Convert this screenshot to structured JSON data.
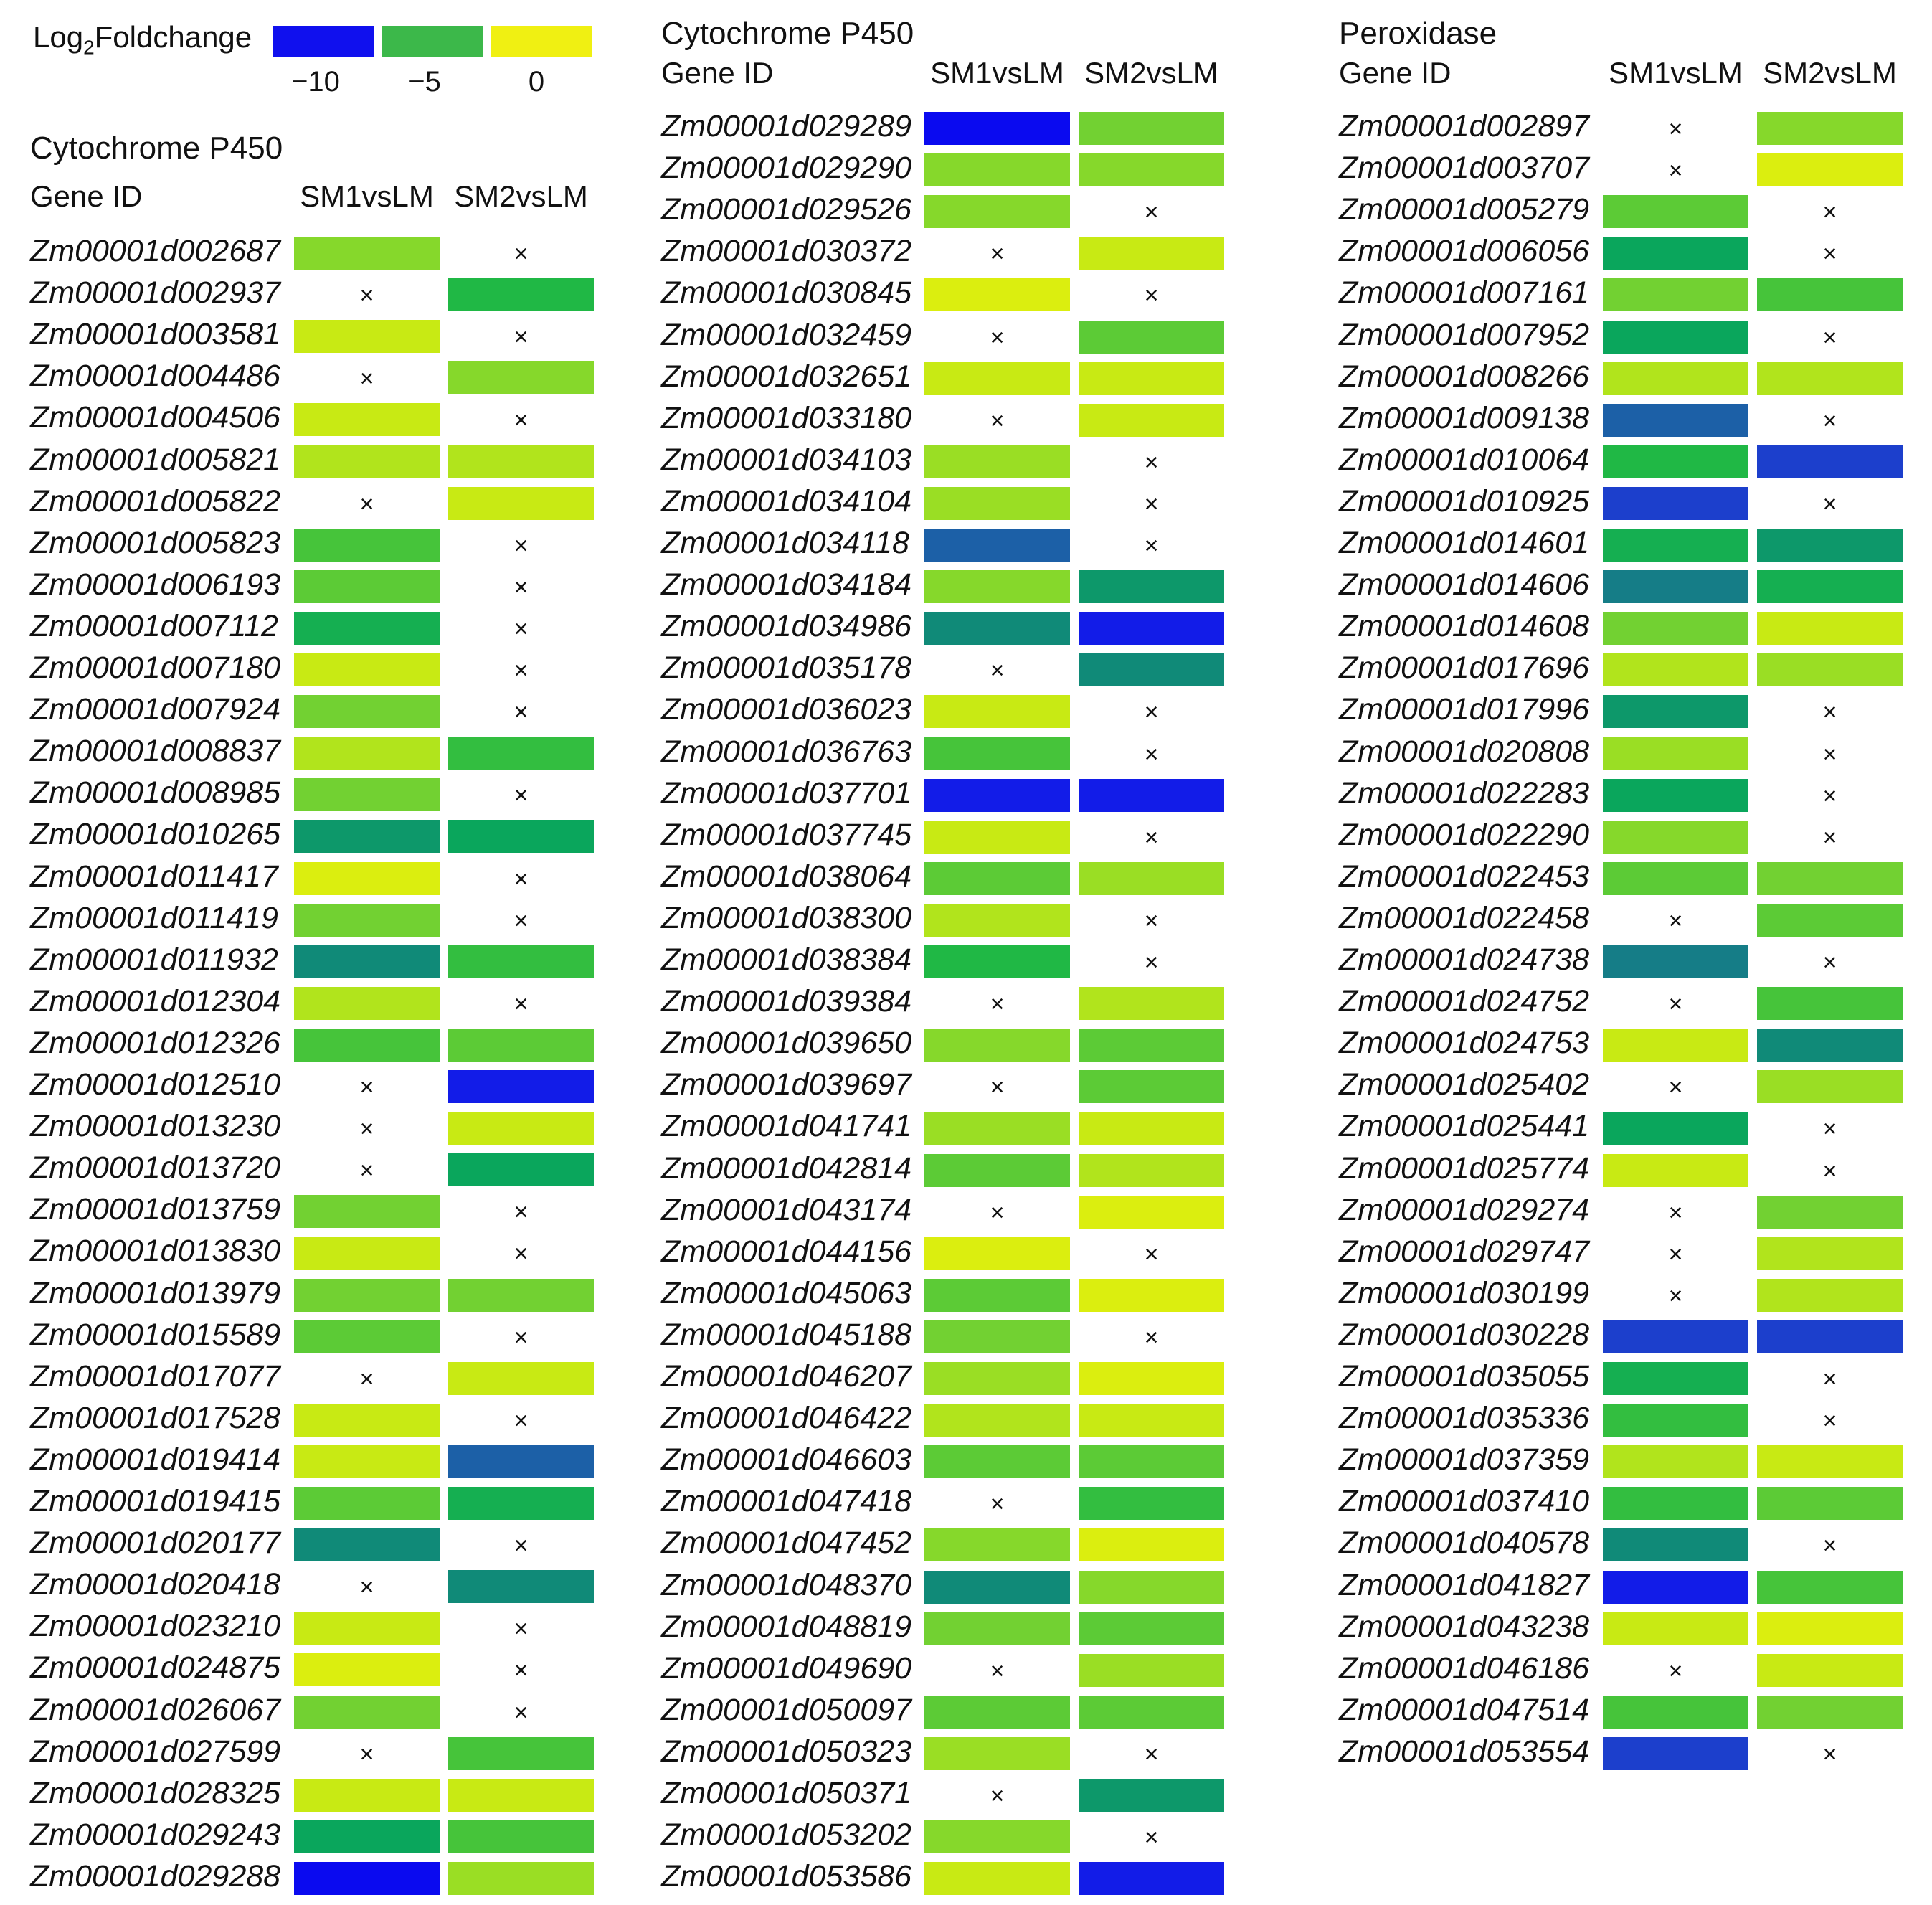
{
  "chart_data": {
    "type": "heatmap",
    "legend": {
      "title_prefix": "Log",
      "title_sub": "2",
      "title_suffix": "Foldchange",
      "ticks": [
        "−10",
        "−5",
        "0"
      ],
      "swatches": [
        "#1010ee",
        "#3cb84a",
        "#f0f012"
      ]
    },
    "missing_symbol": "×",
    "colorscale": {
      "domain": [
        -10,
        0
      ],
      "stops": [
        [
          -11,
          "#0a0af0"
        ],
        [
          -10,
          "#1a2ee0"
        ],
        [
          -9,
          "#1d50b8"
        ],
        [
          -8,
          "#1a6f96"
        ],
        [
          -7,
          "#108a78"
        ],
        [
          -6,
          "#0aa65c"
        ],
        [
          -5,
          "#20b845"
        ],
        [
          -4,
          "#46c43a"
        ],
        [
          -3,
          "#72d132"
        ],
        [
          -2,
          "#9ade24"
        ],
        [
          -1,
          "#c8ea14"
        ],
        [
          0,
          "#eef20a"
        ]
      ]
    },
    "panels": [
      {
        "title": "Cytochrome P450",
        "gene_header": "Gene ID",
        "columns": [
          "SM1vsLM",
          "SM2vsLM"
        ],
        "rows": [
          {
            "gene": "Zm00001d002687",
            "values": [
              -2.5,
              null
            ]
          },
          {
            "gene": "Zm00001d002937",
            "values": [
              null,
              -5
            ]
          },
          {
            "gene": "Zm00001d003581",
            "values": [
              -1,
              null
            ]
          },
          {
            "gene": "Zm00001d004486",
            "values": [
              null,
              -2.5
            ]
          },
          {
            "gene": "Zm00001d004506",
            "values": [
              -1,
              null
            ]
          },
          {
            "gene": "Zm00001d005821",
            "values": [
              -1.5,
              -1.5
            ]
          },
          {
            "gene": "Zm00001d005822",
            "values": [
              null,
              -1
            ]
          },
          {
            "gene": "Zm00001d005823",
            "values": [
              -4,
              null
            ]
          },
          {
            "gene": "Zm00001d006193",
            "values": [
              -3.5,
              null
            ]
          },
          {
            "gene": "Zm00001d007112",
            "values": [
              -5.5,
              null
            ]
          },
          {
            "gene": "Zm00001d007180",
            "values": [
              -1,
              null
            ]
          },
          {
            "gene": "Zm00001d007924",
            "values": [
              -3,
              null
            ]
          },
          {
            "gene": "Zm00001d008837",
            "values": [
              -1.5,
              -4.5
            ]
          },
          {
            "gene": "Zm00001d008985",
            "values": [
              -3,
              null
            ]
          },
          {
            "gene": "Zm00001d010265",
            "values": [
              -6.5,
              -6
            ]
          },
          {
            "gene": "Zm00001d011417",
            "values": [
              -0.5,
              null
            ]
          },
          {
            "gene": "Zm00001d011419",
            "values": [
              -3,
              null
            ]
          },
          {
            "gene": "Zm00001d011932",
            "values": [
              -7,
              -4.5
            ]
          },
          {
            "gene": "Zm00001d012304",
            "values": [
              -1.5,
              null
            ]
          },
          {
            "gene": "Zm00001d012326",
            "values": [
              -4,
              -3.5
            ]
          },
          {
            "gene": "Zm00001d012510",
            "values": [
              null,
              -10.5
            ]
          },
          {
            "gene": "Zm00001d013230",
            "values": [
              null,
              -1
            ]
          },
          {
            "gene": "Zm00001d013720",
            "values": [
              null,
              -6
            ]
          },
          {
            "gene": "Zm00001d013759",
            "values": [
              -3,
              null
            ]
          },
          {
            "gene": "Zm00001d013830",
            "values": [
              -1,
              null
            ]
          },
          {
            "gene": "Zm00001d013979",
            "values": [
              -3,
              -3
            ]
          },
          {
            "gene": "Zm00001d015589",
            "values": [
              -3.5,
              null
            ]
          },
          {
            "gene": "Zm00001d017077",
            "values": [
              null,
              -1
            ]
          },
          {
            "gene": "Zm00001d017528",
            "values": [
              -1,
              null
            ]
          },
          {
            "gene": "Zm00001d019414",
            "values": [
              -1,
              -8.5
            ]
          },
          {
            "gene": "Zm00001d019415",
            "values": [
              -3.5,
              -5.5
            ]
          },
          {
            "gene": "Zm00001d020177",
            "values": [
              -7,
              null
            ]
          },
          {
            "gene": "Zm00001d020418",
            "values": [
              null,
              -7
            ]
          },
          {
            "gene": "Zm00001d023210",
            "values": [
              -1,
              null
            ]
          },
          {
            "gene": "Zm00001d024875",
            "values": [
              -0.5,
              null
            ]
          },
          {
            "gene": "Zm00001d026067",
            "values": [
              -3,
              null
            ]
          },
          {
            "gene": "Zm00001d027599",
            "values": [
              null,
              -4
            ]
          },
          {
            "gene": "Zm00001d028325",
            "values": [
              -1,
              -1
            ]
          },
          {
            "gene": "Zm00001d029243",
            "values": [
              -6,
              -4
            ]
          },
          {
            "gene": "Zm00001d029288",
            "values": [
              -11,
              -2
            ]
          }
        ]
      },
      {
        "title": "Cytochrome P450",
        "gene_header": "Gene ID",
        "columns": [
          "SM1vsLM",
          "SM2vsLM"
        ],
        "rows": [
          {
            "gene": "Zm00001d029289",
            "values": [
              -11,
              -3
            ]
          },
          {
            "gene": "Zm00001d029290",
            "values": [
              -2.5,
              -2.5
            ]
          },
          {
            "gene": "Zm00001d029526",
            "values": [
              -2.5,
              null
            ]
          },
          {
            "gene": "Zm00001d030372",
            "values": [
              null,
              -1
            ]
          },
          {
            "gene": "Zm00001d030845",
            "values": [
              -0.5,
              null
            ]
          },
          {
            "gene": "Zm00001d032459",
            "values": [
              null,
              -3.5
            ]
          },
          {
            "gene": "Zm00001d032651",
            "values": [
              -1,
              -1
            ]
          },
          {
            "gene": "Zm00001d033180",
            "values": [
              null,
              -1
            ]
          },
          {
            "gene": "Zm00001d034103",
            "values": [
              -2,
              null
            ]
          },
          {
            "gene": "Zm00001d034104",
            "values": [
              -2,
              null
            ]
          },
          {
            "gene": "Zm00001d034118",
            "values": [
              -8.5,
              null
            ]
          },
          {
            "gene": "Zm00001d034184",
            "values": [
              -2.5,
              -6.5
            ]
          },
          {
            "gene": "Zm00001d034986",
            "values": [
              -7,
              -10.5
            ]
          },
          {
            "gene": "Zm00001d035178",
            "values": [
              null,
              -7
            ]
          },
          {
            "gene": "Zm00001d036023",
            "values": [
              -1,
              null
            ]
          },
          {
            "gene": "Zm00001d036763",
            "values": [
              -4,
              null
            ]
          },
          {
            "gene": "Zm00001d037701",
            "values": [
              -10.5,
              -10.5
            ]
          },
          {
            "gene": "Zm00001d037745",
            "values": [
              -1,
              null
            ]
          },
          {
            "gene": "Zm00001d038064",
            "values": [
              -3.5,
              -2
            ]
          },
          {
            "gene": "Zm00001d038300",
            "values": [
              -1.5,
              null
            ]
          },
          {
            "gene": "Zm00001d038384",
            "values": [
              -5,
              null
            ]
          },
          {
            "gene": "Zm00001d039384",
            "values": [
              null,
              -1.5
            ]
          },
          {
            "gene": "Zm00001d039650",
            "values": [
              -2.5,
              -3.5
            ]
          },
          {
            "gene": "Zm00001d039697",
            "values": [
              null,
              -3.5
            ]
          },
          {
            "gene": "Zm00001d041741",
            "values": [
              -2,
              -1
            ]
          },
          {
            "gene": "Zm00001d042814",
            "values": [
              -3.5,
              -1.5
            ]
          },
          {
            "gene": "Zm00001d043174",
            "values": [
              null,
              -0.5
            ]
          },
          {
            "gene": "Zm00001d044156",
            "values": [
              -0.5,
              null
            ]
          },
          {
            "gene": "Zm00001d045063",
            "values": [
              -3.5,
              -0.5
            ]
          },
          {
            "gene": "Zm00001d045188",
            "values": [
              -3,
              null
            ]
          },
          {
            "gene": "Zm00001d046207",
            "values": [
              -2,
              -0.5
            ]
          },
          {
            "gene": "Zm00001d046422",
            "values": [
              -1.5,
              -1
            ]
          },
          {
            "gene": "Zm00001d046603",
            "values": [
              -3.5,
              -3.5
            ]
          },
          {
            "gene": "Zm00001d047418",
            "values": [
              null,
              -4.5
            ]
          },
          {
            "gene": "Zm00001d047452",
            "values": [
              -2.5,
              -0.5
            ]
          },
          {
            "gene": "Zm00001d048370",
            "values": [
              -7,
              -2.5
            ]
          },
          {
            "gene": "Zm00001d048819",
            "values": [
              -3,
              -3.5
            ]
          },
          {
            "gene": "Zm00001d049690",
            "values": [
              null,
              -2
            ]
          },
          {
            "gene": "Zm00001d050097",
            "values": [
              -3.5,
              -3.5
            ]
          },
          {
            "gene": "Zm00001d050323",
            "values": [
              -2,
              null
            ]
          },
          {
            "gene": "Zm00001d050371",
            "values": [
              null,
              -6.5
            ]
          },
          {
            "gene": "Zm00001d053202",
            "values": [
              -2.5,
              null
            ]
          },
          {
            "gene": "Zm00001d053586",
            "values": [
              -1,
              -10.5
            ]
          }
        ]
      },
      {
        "title": "Peroxidase",
        "gene_header": "Gene ID",
        "columns": [
          "SM1vsLM",
          "SM2vsLM"
        ],
        "rows": [
          {
            "gene": "Zm00001d002897",
            "values": [
              null,
              -2.5
            ]
          },
          {
            "gene": "Zm00001d003707",
            "values": [
              null,
              -0.5
            ]
          },
          {
            "gene": "Zm00001d005279",
            "values": [
              -3.5,
              null
            ]
          },
          {
            "gene": "Zm00001d006056",
            "values": [
              -6,
              null
            ]
          },
          {
            "gene": "Zm00001d007161",
            "values": [
              -3,
              -4
            ]
          },
          {
            "gene": "Zm00001d007952",
            "values": [
              -6,
              null
            ]
          },
          {
            "gene": "Zm00001d008266",
            "values": [
              -1.5,
              -1.5
            ]
          },
          {
            "gene": "Zm00001d009138",
            "values": [
              -8.5,
              null
            ]
          },
          {
            "gene": "Zm00001d010064",
            "values": [
              -5,
              -9.5
            ]
          },
          {
            "gene": "Zm00001d010925",
            "values": [
              -9.5,
              null
            ]
          },
          {
            "gene": "Zm00001d014601",
            "values": [
              -5.5,
              -6.5
            ]
          },
          {
            "gene": "Zm00001d014606",
            "values": [
              -7.5,
              -5.5
            ]
          },
          {
            "gene": "Zm00001d014608",
            "values": [
              -3,
              -1
            ]
          },
          {
            "gene": "Zm00001d017696",
            "values": [
              -1.5,
              -2
            ]
          },
          {
            "gene": "Zm00001d017996",
            "values": [
              -6.5,
              null
            ]
          },
          {
            "gene": "Zm00001d020808",
            "values": [
              -2,
              null
            ]
          },
          {
            "gene": "Zm00001d022283",
            "values": [
              -6,
              null
            ]
          },
          {
            "gene": "Zm00001d022290",
            "values": [
              -2.5,
              null
            ]
          },
          {
            "gene": "Zm00001d022453",
            "values": [
              -3.5,
              -3
            ]
          },
          {
            "gene": "Zm00001d022458",
            "values": [
              null,
              -3.5
            ]
          },
          {
            "gene": "Zm00001d024738",
            "values": [
              -7.5,
              null
            ]
          },
          {
            "gene": "Zm00001d024752",
            "values": [
              null,
              -4
            ]
          },
          {
            "gene": "Zm00001d024753",
            "values": [
              -1,
              -7
            ]
          },
          {
            "gene": "Zm00001d025402",
            "values": [
              null,
              -2
            ]
          },
          {
            "gene": "Zm00001d025441",
            "values": [
              -6,
              null
            ]
          },
          {
            "gene": "Zm00001d025774",
            "values": [
              -1,
              null
            ]
          },
          {
            "gene": "Zm00001d029274",
            "values": [
              null,
              -3
            ]
          },
          {
            "gene": "Zm00001d029747",
            "values": [
              null,
              -1.5
            ]
          },
          {
            "gene": "Zm00001d030199",
            "values": [
              null,
              -1.5
            ]
          },
          {
            "gene": "Zm00001d030228",
            "values": [
              -9.5,
              -9.5
            ]
          },
          {
            "gene": "Zm00001d035055",
            "values": [
              -5.5,
              null
            ]
          },
          {
            "gene": "Zm00001d035336",
            "values": [
              -4.5,
              null
            ]
          },
          {
            "gene": "Zm00001d037359",
            "values": [
              -1.5,
              -1
            ]
          },
          {
            "gene": "Zm00001d037410",
            "values": [
              -4.5,
              -3.5
            ]
          },
          {
            "gene": "Zm00001d040578",
            "values": [
              -7,
              null
            ]
          },
          {
            "gene": "Zm00001d041827",
            "values": [
              -10.5,
              -4
            ]
          },
          {
            "gene": "Zm00001d043238",
            "values": [
              -1,
              -0.5
            ]
          },
          {
            "gene": "Zm00001d046186",
            "values": [
              null,
              -1
            ]
          },
          {
            "gene": "Zm00001d047514",
            "values": [
              -4,
              -3
            ]
          },
          {
            "gene": "Zm00001d053554",
            "values": [
              -9.5,
              null
            ]
          }
        ]
      }
    ]
  }
}
